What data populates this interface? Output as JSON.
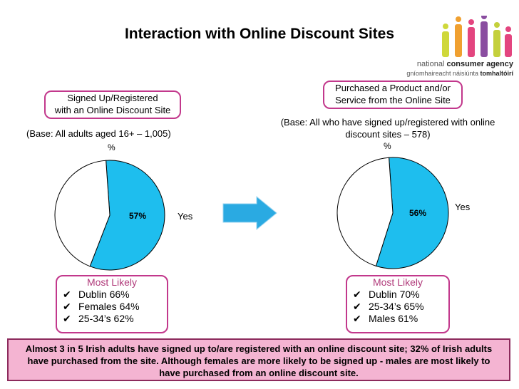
{
  "title": "Interaction with Online Discount Sites",
  "logo": {
    "line1_pre": "national ",
    "line1_bold": "consumer agency",
    "line2_pre": "gníomhaireacht náisiúnta ",
    "line2_bold": "tomhaltóirí",
    "colors": [
      "#cfd83a",
      "#f0a030",
      "#e3457f",
      "#8a4da0",
      "#c4d03c",
      "#e3457f"
    ]
  },
  "left": {
    "heading_line1": "Signed Up/Registered",
    "heading_line2": "with an Online Discount Site",
    "base": "(Base:  All adults aged 16+ – 1,005)",
    "pct_symbol": "%",
    "yes_label": "Yes",
    "most_likely_title": "Most Likely",
    "most_likely": [
      "Dublin 66%",
      "Females 64%",
      "25-34’s 62%"
    ]
  },
  "right": {
    "heading_line1": "Purchased a Product and/or",
    "heading_line2": "Service from the Online Site",
    "base_line1": "(Base:  All who have signed up/registered with online",
    "base_line2": "discount sites – 578)",
    "pct_symbol": "%",
    "yes_label": "Yes",
    "most_likely_title": "Most Likely",
    "most_likely": [
      "Dublin 70%",
      "25-34’s 65%",
      "Males 61%"
    ]
  },
  "footer": {
    "line1": "Almost 3 in 5 Irish adults have signed up to/are registered with an online discount site; 32% of Irish adults",
    "line2": "have purchased from the site. Although females are more likely to be signed up  - males are most likely to",
    "line3": "have purchased from an online discount site."
  },
  "chart_data": [
    {
      "type": "pie",
      "title": "Signed Up/Registered with an Online Discount Site",
      "slices": [
        {
          "label": "Yes",
          "value": 57,
          "display": "57%",
          "color": "#1ebeee"
        },
        {
          "label": "",
          "value": 43,
          "display": "",
          "color": "#ffffff"
        }
      ]
    },
    {
      "type": "pie",
      "title": "Purchased a Product and/or Service from the Online Site",
      "slices": [
        {
          "label": "Yes",
          "value": 56,
          "display": "56%",
          "color": "#1ebeee"
        },
        {
          "label": "",
          "value": 44,
          "display": "",
          "color": "#ffffff"
        }
      ]
    }
  ],
  "arrow_color": "#2aaae2",
  "accent": "#c2388c"
}
